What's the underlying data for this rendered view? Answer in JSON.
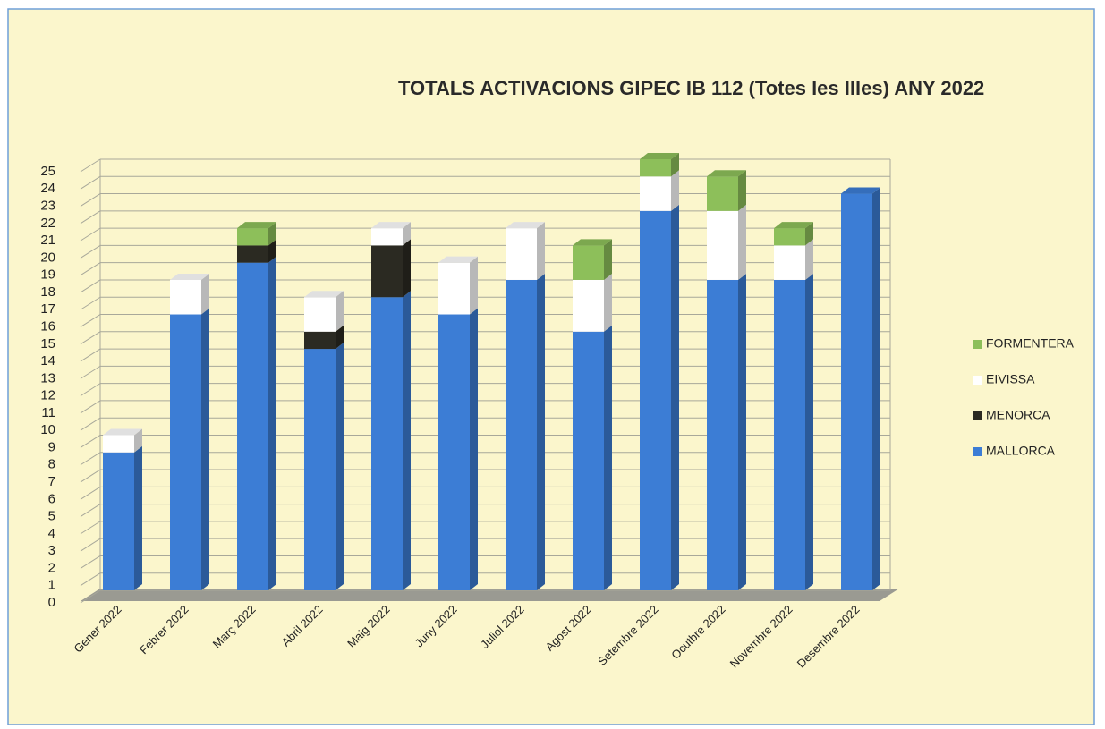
{
  "chart_data": {
    "type": "bar3d-stacked",
    "title": "TOTALS ACTIVACIONS GIPEC IB 112 (Totes les Illes) ANY 2022",
    "categories": [
      "Gener 2022",
      "Febrer 2022",
      "Març 2022",
      "Abril 2022",
      "Maig 2022",
      "Juny 2022",
      "Juliol 2022",
      "Agost 2022",
      "Setembre 2022",
      "Ocutbre 2022",
      "Novembre 2022",
      "Desembre 2022"
    ],
    "series": [
      {
        "name": "MALLORCA",
        "color": "#3c7dd5",
        "values": [
          8,
          16,
          19,
          14,
          17,
          16,
          18,
          15,
          22,
          18,
          18,
          23
        ]
      },
      {
        "name": "MENORCA",
        "color": "#2b2a22",
        "values": [
          0,
          0,
          1,
          1,
          3,
          0,
          0,
          0,
          0,
          0,
          0,
          0
        ]
      },
      {
        "name": "EIVISSA",
        "color": "#ffffff",
        "values": [
          1,
          2,
          0,
          2,
          1,
          3,
          3,
          3,
          2,
          4,
          2,
          0
        ]
      },
      {
        "name": "FORMENTERA",
        "color": "#8dbf5a",
        "values": [
          0,
          0,
          1,
          0,
          0,
          0,
          0,
          2,
          1,
          2,
          1,
          0
        ]
      }
    ],
    "ylim": [
      0,
      25
    ],
    "yticks": [
      0,
      1,
      2,
      3,
      4,
      5,
      6,
      7,
      8,
      9,
      10,
      11,
      12,
      13,
      14,
      15,
      16,
      17,
      18,
      19,
      20,
      21,
      22,
      23,
      24,
      25
    ],
    "grid": true,
    "legend": "right"
  }
}
